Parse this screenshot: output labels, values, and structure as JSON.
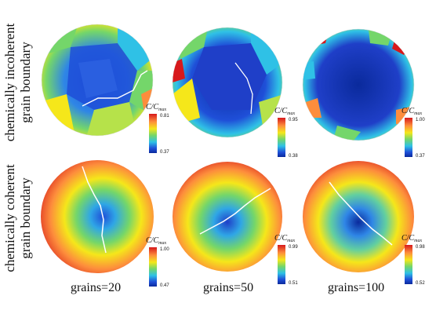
{
  "rows": [
    {
      "label_line1": "chemically incoherent",
      "label_line2": "grain boundary"
    },
    {
      "label_line1": "chemically coherent",
      "label_line2": "grain boundary"
    }
  ],
  "colorbar_title_main": "C/C",
  "colorbar_title_sub": "max",
  "colorbars": [
    {
      "max": "0.81",
      "min": "0.37"
    },
    {
      "max": "0.95",
      "min": "0.38"
    },
    {
      "max": "1.00",
      "min": "0.37"
    },
    {
      "max": "1.00",
      "min": "0.47"
    },
    {
      "max": "0.99",
      "min": "0.51"
    },
    {
      "max": "0.98",
      "min": "0.52"
    }
  ],
  "column_labels": [
    "grains=20",
    "grains=50",
    "grains=100"
  ],
  "colors": {
    "red": "#d7191c",
    "orange": "#fd8d3c",
    "yellow": "#f5e71a",
    "green": "#74d66a",
    "cyan": "#2fc1e6",
    "blue": "#1f4fd8",
    "darkblue": "#0a2a9c"
  }
}
